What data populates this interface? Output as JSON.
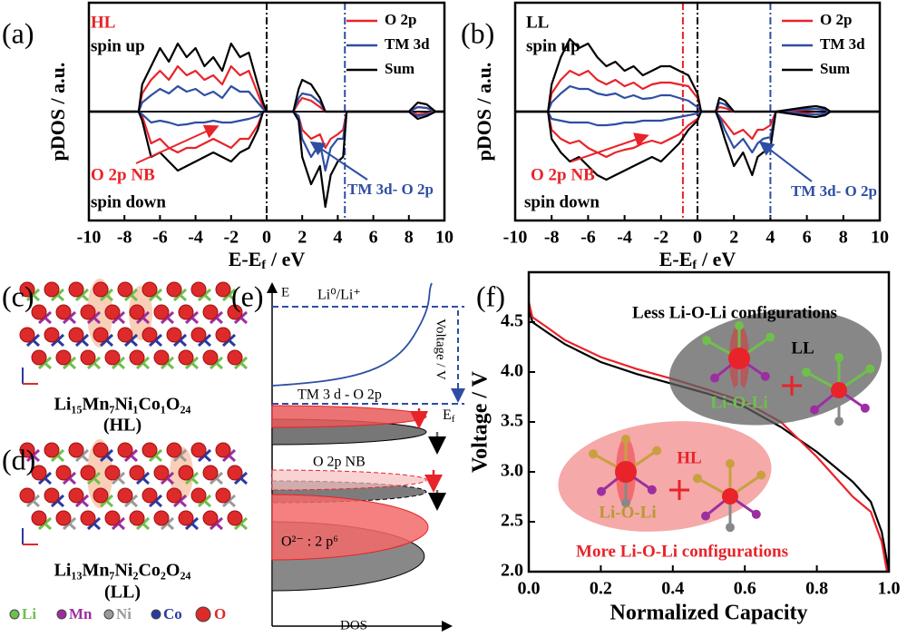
{
  "chart_data": [
    {
      "type": "dos",
      "panel": "(a)",
      "y_label": "pDOS / a.u.",
      "x_label": {
        "text": "E-E",
        "sub": "f",
        "unit": "/ eV"
      },
      "xlim": [
        -10,
        10
      ],
      "ylim": [
        -1.2,
        1.2
      ],
      "xticks": [
        -10,
        -8,
        -6,
        -4,
        -2,
        0,
        2,
        4,
        6,
        8,
        10
      ],
      "legend": "upper right",
      "x": [
        -10,
        -7.5,
        -7.2,
        -7,
        -6.5,
        -6,
        -5.5,
        -5,
        -4.5,
        -4,
        -3.5,
        -3,
        -2.5,
        -2,
        -1.5,
        -1,
        -0.5,
        -0.2,
        0,
        1.5,
        1.8,
        2,
        2.5,
        3,
        3.3,
        3.6,
        4,
        4.3,
        4.5,
        8,
        8.5,
        9,
        9.5,
        10
      ],
      "series": [
        {
          "name": "O 2p",
          "color": "#e8232a",
          "up": [
            0,
            0,
            0,
            0.2,
            0.35,
            0.45,
            0.35,
            0.5,
            0.4,
            0.45,
            0.35,
            0.4,
            0.3,
            0.5,
            0.4,
            0.45,
            0.2,
            0.05,
            0,
            0,
            0.1,
            0.15,
            0.12,
            0.05,
            0,
            0,
            0,
            0,
            0,
            0,
            0.05,
            0.04,
            0,
            0
          ],
          "down": [
            0,
            0,
            0,
            -0.05,
            -0.35,
            -0.3,
            -0.4,
            -0.45,
            -0.4,
            -0.4,
            -0.35,
            -0.3,
            -0.35,
            -0.4,
            -0.3,
            -0.3,
            -0.15,
            0,
            0,
            0,
            -0.05,
            -0.2,
            -0.3,
            -0.25,
            -0.4,
            -0.3,
            -0.25,
            -0.2,
            0,
            0,
            -0.03,
            -0.02,
            0,
            0
          ]
        },
        {
          "name": "TM 3d",
          "color": "#2f4ea3",
          "up": [
            0,
            0,
            0,
            0.1,
            0.18,
            0.25,
            0.2,
            0.28,
            0.22,
            0.25,
            0.18,
            0.22,
            0.15,
            0.28,
            0.22,
            0.22,
            0.1,
            0.03,
            0,
            0,
            0.15,
            0.2,
            0.18,
            0.1,
            0,
            0,
            0,
            0,
            0,
            0,
            0.05,
            0.04,
            0,
            0
          ],
          "down": [
            0,
            0,
            0,
            -0.03,
            -0.12,
            -0.1,
            -0.12,
            -0.15,
            -0.14,
            -0.12,
            -0.12,
            -0.1,
            -0.12,
            -0.12,
            -0.1,
            -0.08,
            -0.05,
            0,
            0,
            0,
            -0.05,
            -0.3,
            -0.5,
            -0.35,
            -0.65,
            -0.4,
            -0.3,
            -0.3,
            0,
            0,
            -0.05,
            -0.03,
            0,
            0
          ]
        },
        {
          "name": "Sum",
          "color": "#000000",
          "up": [
            0,
            0,
            0,
            0.3,
            0.5,
            0.7,
            0.55,
            0.75,
            0.6,
            0.7,
            0.5,
            0.6,
            0.45,
            0.75,
            0.6,
            0.65,
            0.3,
            0.1,
            0,
            0,
            0.25,
            0.35,
            0.3,
            0.15,
            0,
            0,
            0,
            0,
            0,
            0,
            0.1,
            0.08,
            0,
            0
          ],
          "down": [
            0,
            0,
            0,
            -0.1,
            -0.5,
            -0.45,
            -0.55,
            -0.65,
            -0.6,
            -0.55,
            -0.5,
            -0.45,
            -0.5,
            -0.55,
            -0.45,
            -0.4,
            -0.2,
            0,
            0,
            0,
            -0.1,
            -0.5,
            -0.8,
            -0.6,
            -1.05,
            -0.7,
            -0.55,
            -0.5,
            0,
            0,
            -0.08,
            -0.05,
            0,
            0
          ]
        }
      ],
      "vlines": [
        {
          "x": 0,
          "color": "#000000"
        },
        {
          "x": 4.4,
          "color": "#2f4ea3"
        }
      ],
      "annotations": {
        "tag": "HL",
        "spin_up": "spin up",
        "nb": "O 2p NB",
        "spin_down": "spin down",
        "hybrid": "TM 3d- O 2p"
      }
    },
    {
      "type": "dos",
      "panel": "(b)",
      "y_label": "pDOS / a.u.",
      "x_label": {
        "text": "E-E",
        "sub": "f",
        "unit": "/ eV"
      },
      "xlim": [
        -10,
        10
      ],
      "ylim": [
        -1.2,
        1.2
      ],
      "xticks": [
        -10,
        -8,
        -6,
        -4,
        -2,
        0,
        2,
        4,
        6,
        8,
        10
      ],
      "legend": "upper right",
      "x": [
        -10,
        -8.2,
        -8,
        -7.5,
        -7,
        -6.5,
        -6,
        -5.5,
        -5,
        -4.5,
        -4,
        -3.5,
        -3,
        -2.5,
        -2,
        -1.5,
        -1,
        -0.5,
        0,
        0.2,
        1,
        1.2,
        1.5,
        2,
        2.5,
        3,
        3.3,
        3.6,
        4,
        4.3,
        6,
        6.5,
        7,
        7.3,
        10
      ],
      "series": [
        {
          "name": "O 2p",
          "color": "#e8232a",
          "up": [
            0,
            0,
            0.2,
            0.35,
            0.45,
            0.4,
            0.45,
            0.35,
            0.3,
            0.35,
            0.28,
            0.32,
            0.25,
            0.3,
            0.32,
            0.32,
            0.3,
            0.28,
            0.15,
            0,
            0,
            0.05,
            0.04,
            0,
            0,
            0,
            0,
            0,
            0,
            0,
            0.02,
            0.03,
            0.02,
            0,
            0
          ],
          "down": [
            0,
            0,
            -0.2,
            -0.3,
            -0.35,
            -0.32,
            -0.4,
            -0.45,
            -0.5,
            -0.45,
            -0.42,
            -0.4,
            -0.35,
            -0.32,
            -0.35,
            -0.3,
            -0.25,
            -0.15,
            -0.08,
            0,
            0,
            -0.05,
            -0.12,
            -0.25,
            -0.2,
            -0.3,
            -0.2,
            -0.2,
            -0.15,
            0,
            -0.02,
            -0.03,
            -0.02,
            0,
            0
          ]
        },
        {
          "name": "TM 3d",
          "color": "#2f4ea3",
          "up": [
            0,
            0,
            0.1,
            0.2,
            0.28,
            0.25,
            0.25,
            0.2,
            0.18,
            0.2,
            0.15,
            0.18,
            0.14,
            0.15,
            0.18,
            0.18,
            0.15,
            0.12,
            0.05,
            0,
            0,
            0.1,
            0.08,
            0,
            0,
            0,
            0,
            0,
            0,
            0,
            0.03,
            0.03,
            0.02,
            0,
            0
          ],
          "down": [
            0,
            0,
            -0.08,
            -0.1,
            -0.12,
            -0.12,
            -0.12,
            -0.15,
            -0.15,
            -0.14,
            -0.12,
            -0.12,
            -0.1,
            -0.1,
            -0.1,
            -0.08,
            -0.06,
            -0.04,
            -0.02,
            0,
            0,
            -0.05,
            -0.2,
            -0.4,
            -0.3,
            -0.45,
            -0.35,
            -0.3,
            -0.28,
            0,
            -0.03,
            -0.03,
            -0.02,
            0,
            0
          ]
        },
        {
          "name": "Sum",
          "color": "#000000",
          "up": [
            0,
            0,
            0.3,
            0.6,
            0.8,
            0.7,
            0.75,
            0.6,
            0.5,
            0.55,
            0.45,
            0.5,
            0.4,
            0.45,
            0.5,
            0.5,
            0.45,
            0.4,
            0.2,
            0,
            0,
            0.15,
            0.12,
            0,
            0,
            0,
            0,
            0,
            0,
            0,
            0.05,
            0.06,
            0.04,
            0,
            0
          ],
          "down": [
            0,
            0,
            -0.3,
            -0.45,
            -0.55,
            -0.5,
            -0.6,
            -0.7,
            -0.75,
            -0.7,
            -0.65,
            -0.6,
            -0.55,
            -0.5,
            -0.55,
            -0.45,
            -0.35,
            -0.2,
            -0.1,
            0,
            0,
            -0.1,
            -0.3,
            -0.6,
            -0.45,
            -0.7,
            -0.5,
            -0.45,
            -0.4,
            0,
            -0.05,
            -0.06,
            -0.04,
            0,
            0
          ]
        }
      ],
      "vlines": [
        {
          "x": -0.8,
          "color": "#e8232a"
        },
        {
          "x": 0,
          "color": "#000000"
        },
        {
          "x": 4.0,
          "color": "#2f4ea3"
        }
      ],
      "annotations": {
        "tag": "LL",
        "spin_up": "spin up",
        "nb": "O 2p NB",
        "spin_down": "spin down",
        "hybrid": "TM 3d- O 2p"
      }
    },
    {
      "type": "line",
      "panel": "(f)",
      "y_label": "Voltage / V",
      "x_label": "Normalized Capacity",
      "xlim": [
        0,
        1
      ],
      "ylim": [
        2.0,
        5.0
      ],
      "xticks": [
        {
          "value": 0,
          "label": "0.0"
        },
        0.2,
        0.4,
        0.6,
        0.8,
        {
          "value": 1,
          "label": "1.0"
        }
      ],
      "yticks": [
        {
          "value": 2,
          "label": "2.0"
        },
        2.5,
        {
          "value": 3,
          "label": "3.0"
        },
        3.5,
        {
          "value": 4,
          "label": "4.0"
        },
        4.5
      ],
      "series": [
        {
          "color": "#000000",
          "x": [
            0,
            0.01,
            0.05,
            0.1,
            0.2,
            0.3,
            0.4,
            0.5,
            0.6,
            0.7,
            0.8,
            0.85,
            0.9,
            0.95,
            0.98,
            1.0
          ],
          "values": [
            4.65,
            4.5,
            4.4,
            4.28,
            4.1,
            3.98,
            3.88,
            3.78,
            3.65,
            3.45,
            3.2,
            3.05,
            2.9,
            2.7,
            2.4,
            2.0
          ]
        },
        {
          "color": "#e8232a",
          "x": [
            0,
            0.01,
            0.05,
            0.1,
            0.2,
            0.3,
            0.4,
            0.5,
            0.6,
            0.7,
            0.8,
            0.85,
            0.9,
            0.95,
            0.98,
            0.995
          ],
          "values": [
            4.7,
            4.55,
            4.45,
            4.32,
            4.15,
            4.03,
            3.93,
            3.82,
            3.7,
            3.5,
            3.15,
            2.95,
            2.75,
            2.6,
            2.3,
            2.0
          ]
        }
      ],
      "annotations": {
        "less": "Less Li-O-Li configurations",
        "ll": "LL",
        "lol_top": "Li-O-Li",
        "hl": "HL",
        "lol_bottom": "Li-O-Li",
        "more": "More Li-O-Li configurations"
      }
    }
  ],
  "structures": {
    "c": {
      "panel": "(c)",
      "formula": "Li₁₅Mn₇Ni₁Co₁O₂₄",
      "tag": "(HL)"
    },
    "d": {
      "panel": "(d)",
      "formula": "Li₁₃Mn₇Ni₂Co₂O₂₄",
      "tag": "(LL)"
    },
    "legend": [
      "Li",
      "Mn",
      "Ni",
      "Co",
      "O"
    ]
  },
  "schematic": {
    "panel": "(e)",
    "y_axis": "E",
    "reference": "Li⁰/Li⁺",
    "voltage": "Voltage / V",
    "hybrid": "TM 3 d - O 2p",
    "fermi": {
      "text": "E",
      "sub": "f"
    },
    "nb": "O 2p NB",
    "oxygen": "O²⁻ : 2 p⁶",
    "x_axis": "DOS"
  }
}
